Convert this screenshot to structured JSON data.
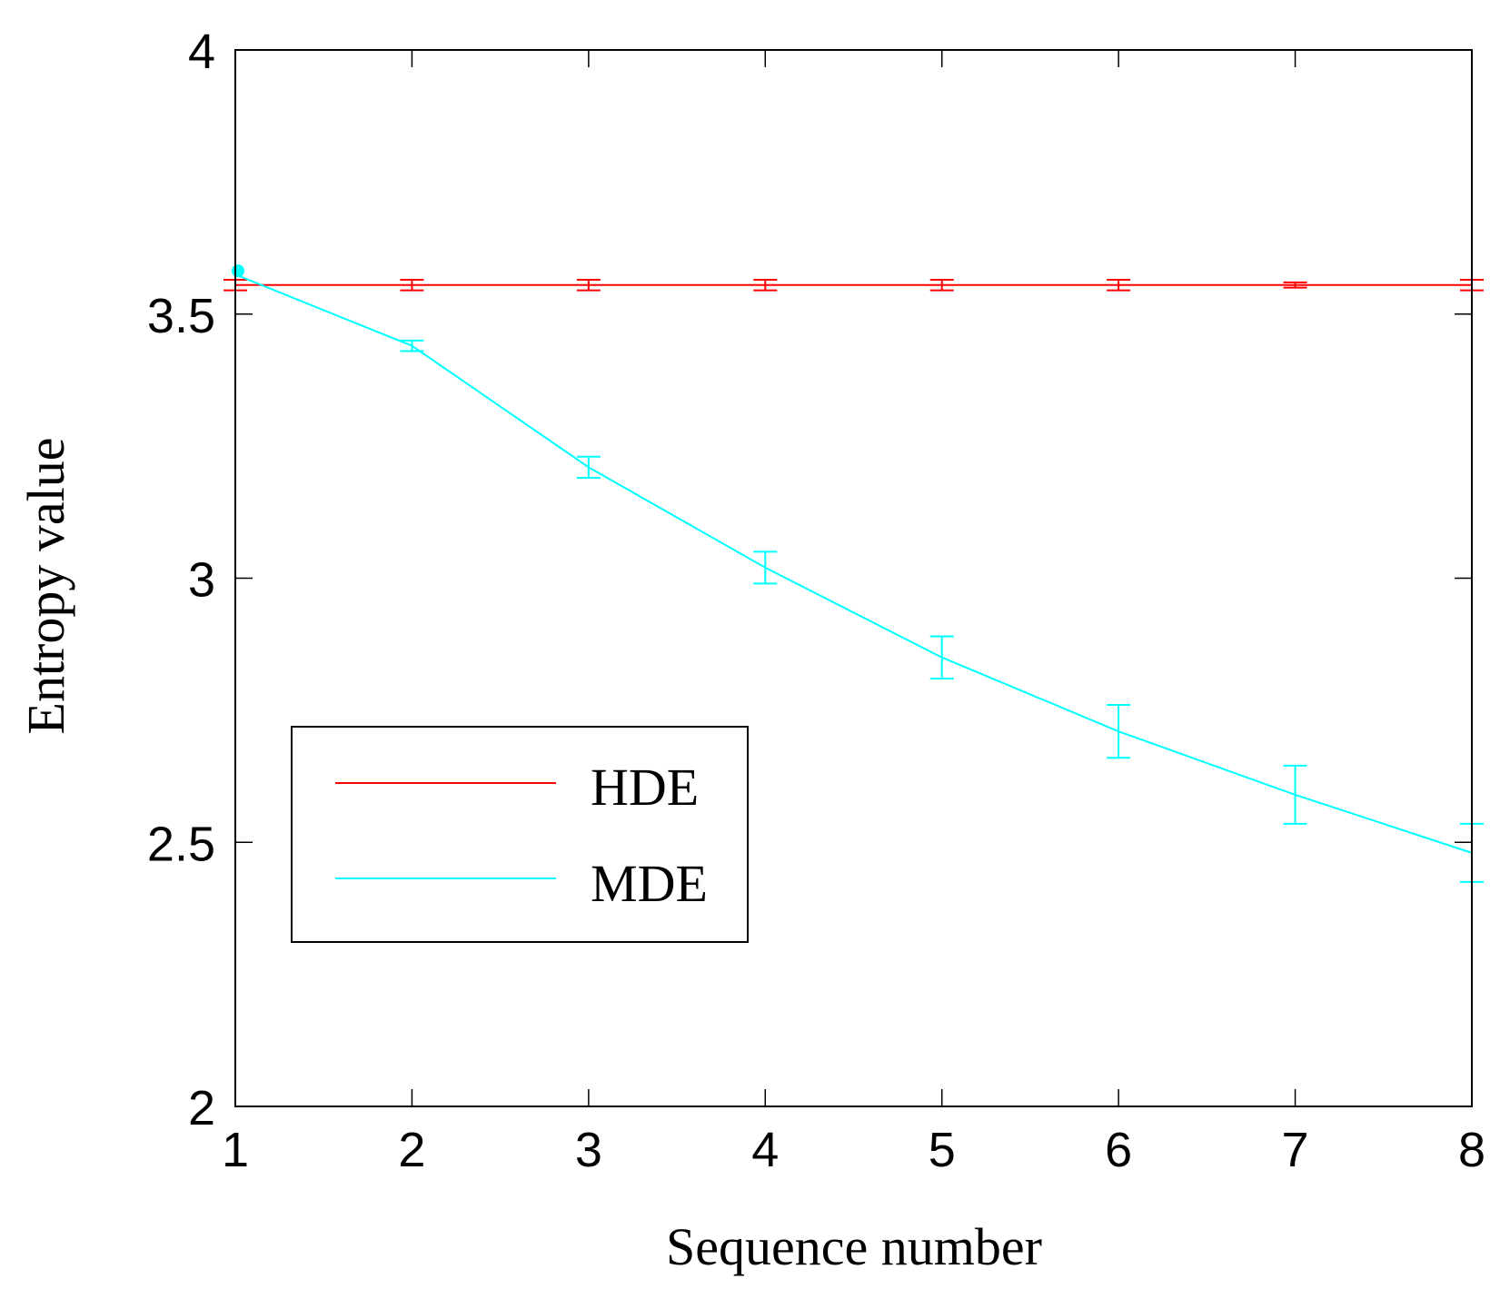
{
  "chart_data": {
    "type": "line",
    "title": "",
    "xlabel": "Sequence number",
    "ylabel": "Entropy value",
    "x": [
      1,
      2,
      3,
      4,
      5,
      6,
      7,
      8
    ],
    "xlim": [
      1,
      8
    ],
    "ylim": [
      2,
      4
    ],
    "xticks": [
      "1",
      "2",
      "3",
      "4",
      "5",
      "6",
      "7",
      "8"
    ],
    "yticks": [
      "2",
      "2.5",
      "3",
      "3.5",
      "4"
    ],
    "ytick_values": [
      2,
      2.5,
      3,
      3.5,
      4
    ],
    "grid": false,
    "legend_position": "lower left (inside plot)",
    "series": [
      {
        "name": "HDE",
        "color": "#ff0000",
        "values": [
          3.555,
          3.555,
          3.555,
          3.555,
          3.555,
          3.555,
          3.555,
          3.555
        ],
        "error": [
          0.01,
          0.01,
          0.01,
          0.01,
          0.01,
          0.01,
          0.005,
          0.01
        ]
      },
      {
        "name": "MDE",
        "color": "#00ffff",
        "values": [
          3.575,
          3.44,
          3.21,
          3.02,
          2.85,
          2.71,
          2.59,
          2.48
        ],
        "error": [
          0.0,
          0.01,
          0.02,
          0.03,
          0.04,
          0.05,
          0.055,
          0.055
        ]
      }
    ]
  },
  "legend": {
    "items": [
      {
        "label": "HDE",
        "color": "#ff0000"
      },
      {
        "label": "MDE",
        "color": "#00ffff"
      }
    ]
  }
}
